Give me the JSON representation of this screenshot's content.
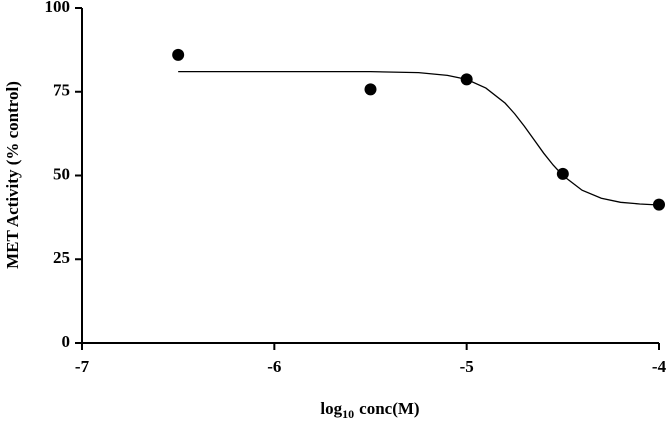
{
  "chart_data": {
    "type": "scatter",
    "ylabel": "MET Activity (% control)",
    "xlabel": [
      "log",
      "10",
      "conc(M)"
    ],
    "xlim": [
      -7,
      -4
    ],
    "xticks": [
      -7,
      -6,
      -5,
      -4
    ],
    "ylim": [
      0,
      100
    ],
    "yticks": [
      0,
      25,
      50,
      75,
      100
    ],
    "points": {
      "color": "#000000",
      "x": [
        -6.5,
        -5.5,
        -5,
        -4.5,
        -4
      ],
      "values": [
        86,
        75.7,
        78.7,
        50.5,
        41.3
      ]
    },
    "curve": {
      "color": "#000000",
      "x": [
        -6.5,
        -6,
        -5.5,
        -5.25,
        -5.1,
        -5,
        -4.9,
        -4.8,
        -4.75,
        -4.7,
        -4.65,
        -4.6,
        -4.55,
        -4.5,
        -4.4,
        -4.3,
        -4.2,
        -4.1,
        -4
      ],
      "values": [
        81.0,
        81.0,
        81.0,
        80.7,
        79.9,
        78.7,
        76.1,
        71.6,
        68.4,
        64.7,
        60.7,
        56.7,
        53.1,
        50.0,
        45.6,
        43.2,
        42.0,
        41.5,
        41.2
      ]
    }
  }
}
